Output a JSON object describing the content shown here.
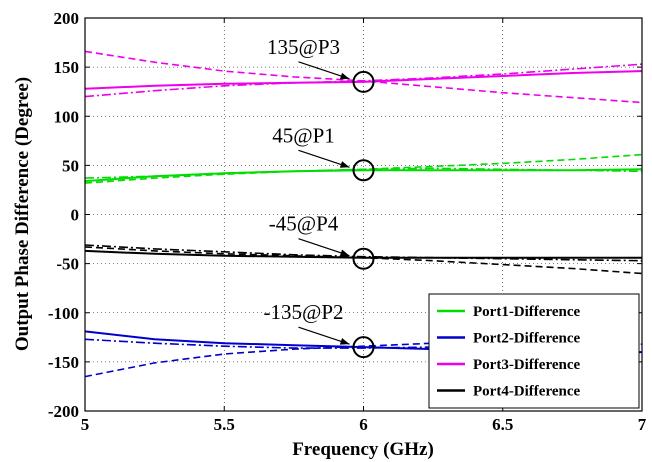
{
  "chart_data": {
    "type": "line",
    "xlabel": "Frequency (GHz)",
    "ylabel": "Output Phase Difference (Degree)",
    "xlim": [
      5,
      7
    ],
    "ylim": [
      -200,
      200
    ],
    "x_ticks": [
      5,
      5.5,
      6,
      6.5,
      7
    ],
    "y_ticks": [
      -200,
      -150,
      -100,
      -50,
      0,
      50,
      100,
      150,
      200
    ],
    "x_tick_labels": [
      "5",
      "5.5",
      "6",
      "6.5",
      "7"
    ],
    "y_tick_labels": [
      "-200",
      "-150",
      "-100",
      "-50",
      "0",
      "50",
      "100",
      "150",
      "200"
    ],
    "grid": true,
    "legend_position": "bottom-right",
    "x": [
      5.0,
      5.25,
      5.5,
      5.75,
      6.0,
      6.25,
      6.5,
      6.75,
      7.0
    ],
    "series": [
      {
        "name": "Port1-Difference",
        "color": "#00dd00",
        "variants": [
          {
            "style": "solid",
            "values": [
              34,
              39,
              42,
              44,
              45,
              45,
              45,
              45,
              46
            ]
          },
          {
            "style": "dashed",
            "values": [
              32,
              37,
              41,
              44,
              46,
              49,
              52,
              56,
              61
            ]
          },
          {
            "style": "dashdot",
            "values": [
              37,
              39,
              42,
              44,
              46,
              47,
              46,
              45,
              44
            ]
          }
        ]
      },
      {
        "name": "Port2-Difference",
        "color": "#0000cc",
        "variants": [
          {
            "style": "solid",
            "values": [
              -119,
              -127,
              -131,
              -133,
              -135,
              -137,
              -138,
              -139,
              -140
            ]
          },
          {
            "style": "dashed",
            "values": [
              -165,
              -151,
              -142,
              -137,
              -134,
              -131,
              -127,
              -124,
              -120
            ]
          },
          {
            "style": "dashdot",
            "values": [
              -127,
              -131,
              -134,
              -136,
              -136,
              -135,
              -134,
              -133,
              -132
            ]
          }
        ]
      },
      {
        "name": "Port3-Difference",
        "color": "#ee00ee",
        "variants": [
          {
            "style": "solid",
            "values": [
              128,
              131,
              133,
              134,
              135,
              138,
              141,
              144,
              146
            ]
          },
          {
            "style": "dashed",
            "values": [
              166,
              155,
              146,
              140,
              136,
              130,
              124,
              119,
              114
            ]
          },
          {
            "style": "dashdot",
            "values": [
              120,
              126,
              131,
              134,
              136,
              139,
              143,
              148,
              153
            ]
          }
        ]
      },
      {
        "name": "Port4-Difference",
        "color": "#000000",
        "variants": [
          {
            "style": "solid",
            "values": [
              -37,
              -40,
              -42,
              -43,
              -44,
              -44,
              -44,
              -44,
              -44
            ]
          },
          {
            "style": "dashed",
            "values": [
              -33,
              -37,
              -40,
              -42,
              -44,
              -47,
              -51,
              -55,
              -60
            ]
          },
          {
            "style": "dashdot",
            "values": [
              -31,
              -35,
              -38,
              -41,
              -43,
              -44,
              -45,
              -46,
              -47
            ]
          }
        ]
      }
    ],
    "annotations": [
      {
        "label": "135@P3",
        "x": 6,
        "y": 135
      },
      {
        "label": "45@P1",
        "x": 6,
        "y": 45
      },
      {
        "label": "-45@P4",
        "x": 6,
        "y": -45
      },
      {
        "label": "-135@P2",
        "x": 6,
        "y": -135
      }
    ]
  }
}
